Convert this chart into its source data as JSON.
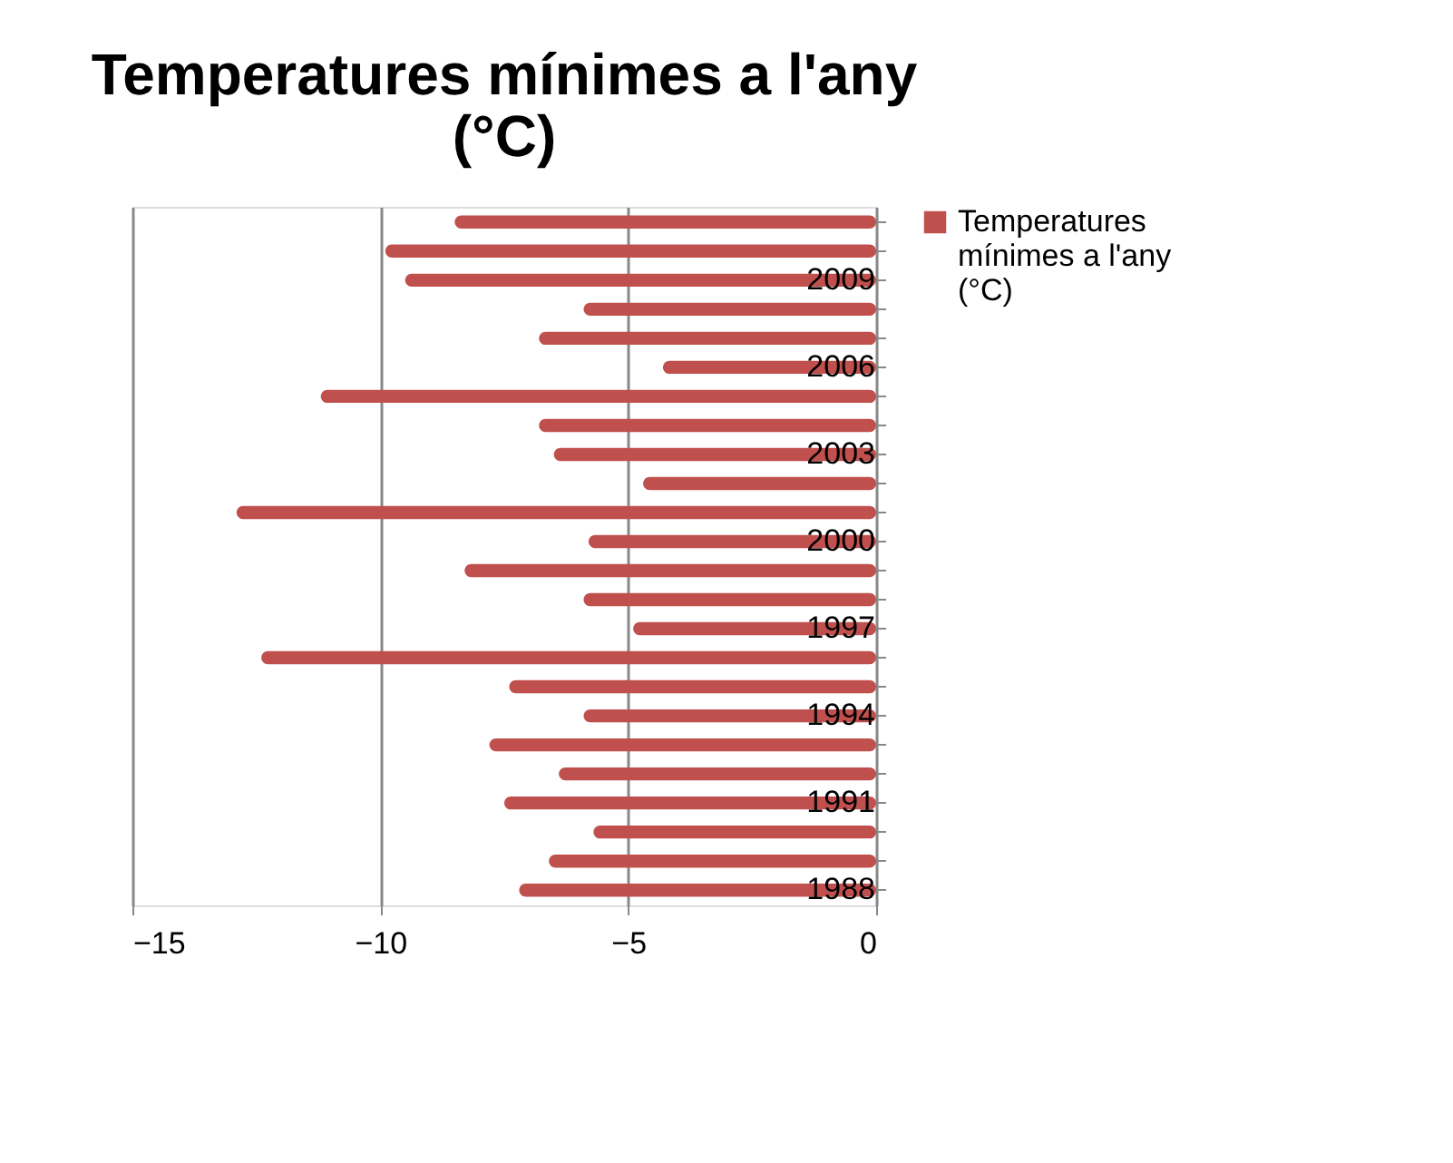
{
  "chart_data": {
    "type": "bar",
    "orientation": "horizontal",
    "title": "Temperatures mínimes a l'any (°C)",
    "categories": [
      null,
      null,
      "2009",
      null,
      null,
      "2006",
      null,
      null,
      "2003",
      null,
      null,
      "2000",
      null,
      null,
      "1997",
      null,
      null,
      "1994",
      null,
      null,
      "1991",
      null,
      null,
      "1988"
    ],
    "series": [
      {
        "name": "Temperatures mínimes a l'any (°C)",
        "color": "#c0504d",
        "values": [
          -8.5,
          -9.9,
          -9.5,
          -5.9,
          -6.8,
          -4.3,
          -11.2,
          -6.8,
          -6.5,
          -4.7,
          -12.9,
          -5.8,
          -8.3,
          -5.9,
          -4.9,
          -12.4,
          -7.4,
          -5.9,
          -7.8,
          -6.4,
          -7.5,
          -5.7,
          -6.6,
          -7.2
        ]
      }
    ],
    "xlim": [
      -15,
      0
    ],
    "xticks": [
      -15,
      -10,
      -5,
      0
    ],
    "grid": "x",
    "legend": "right"
  }
}
